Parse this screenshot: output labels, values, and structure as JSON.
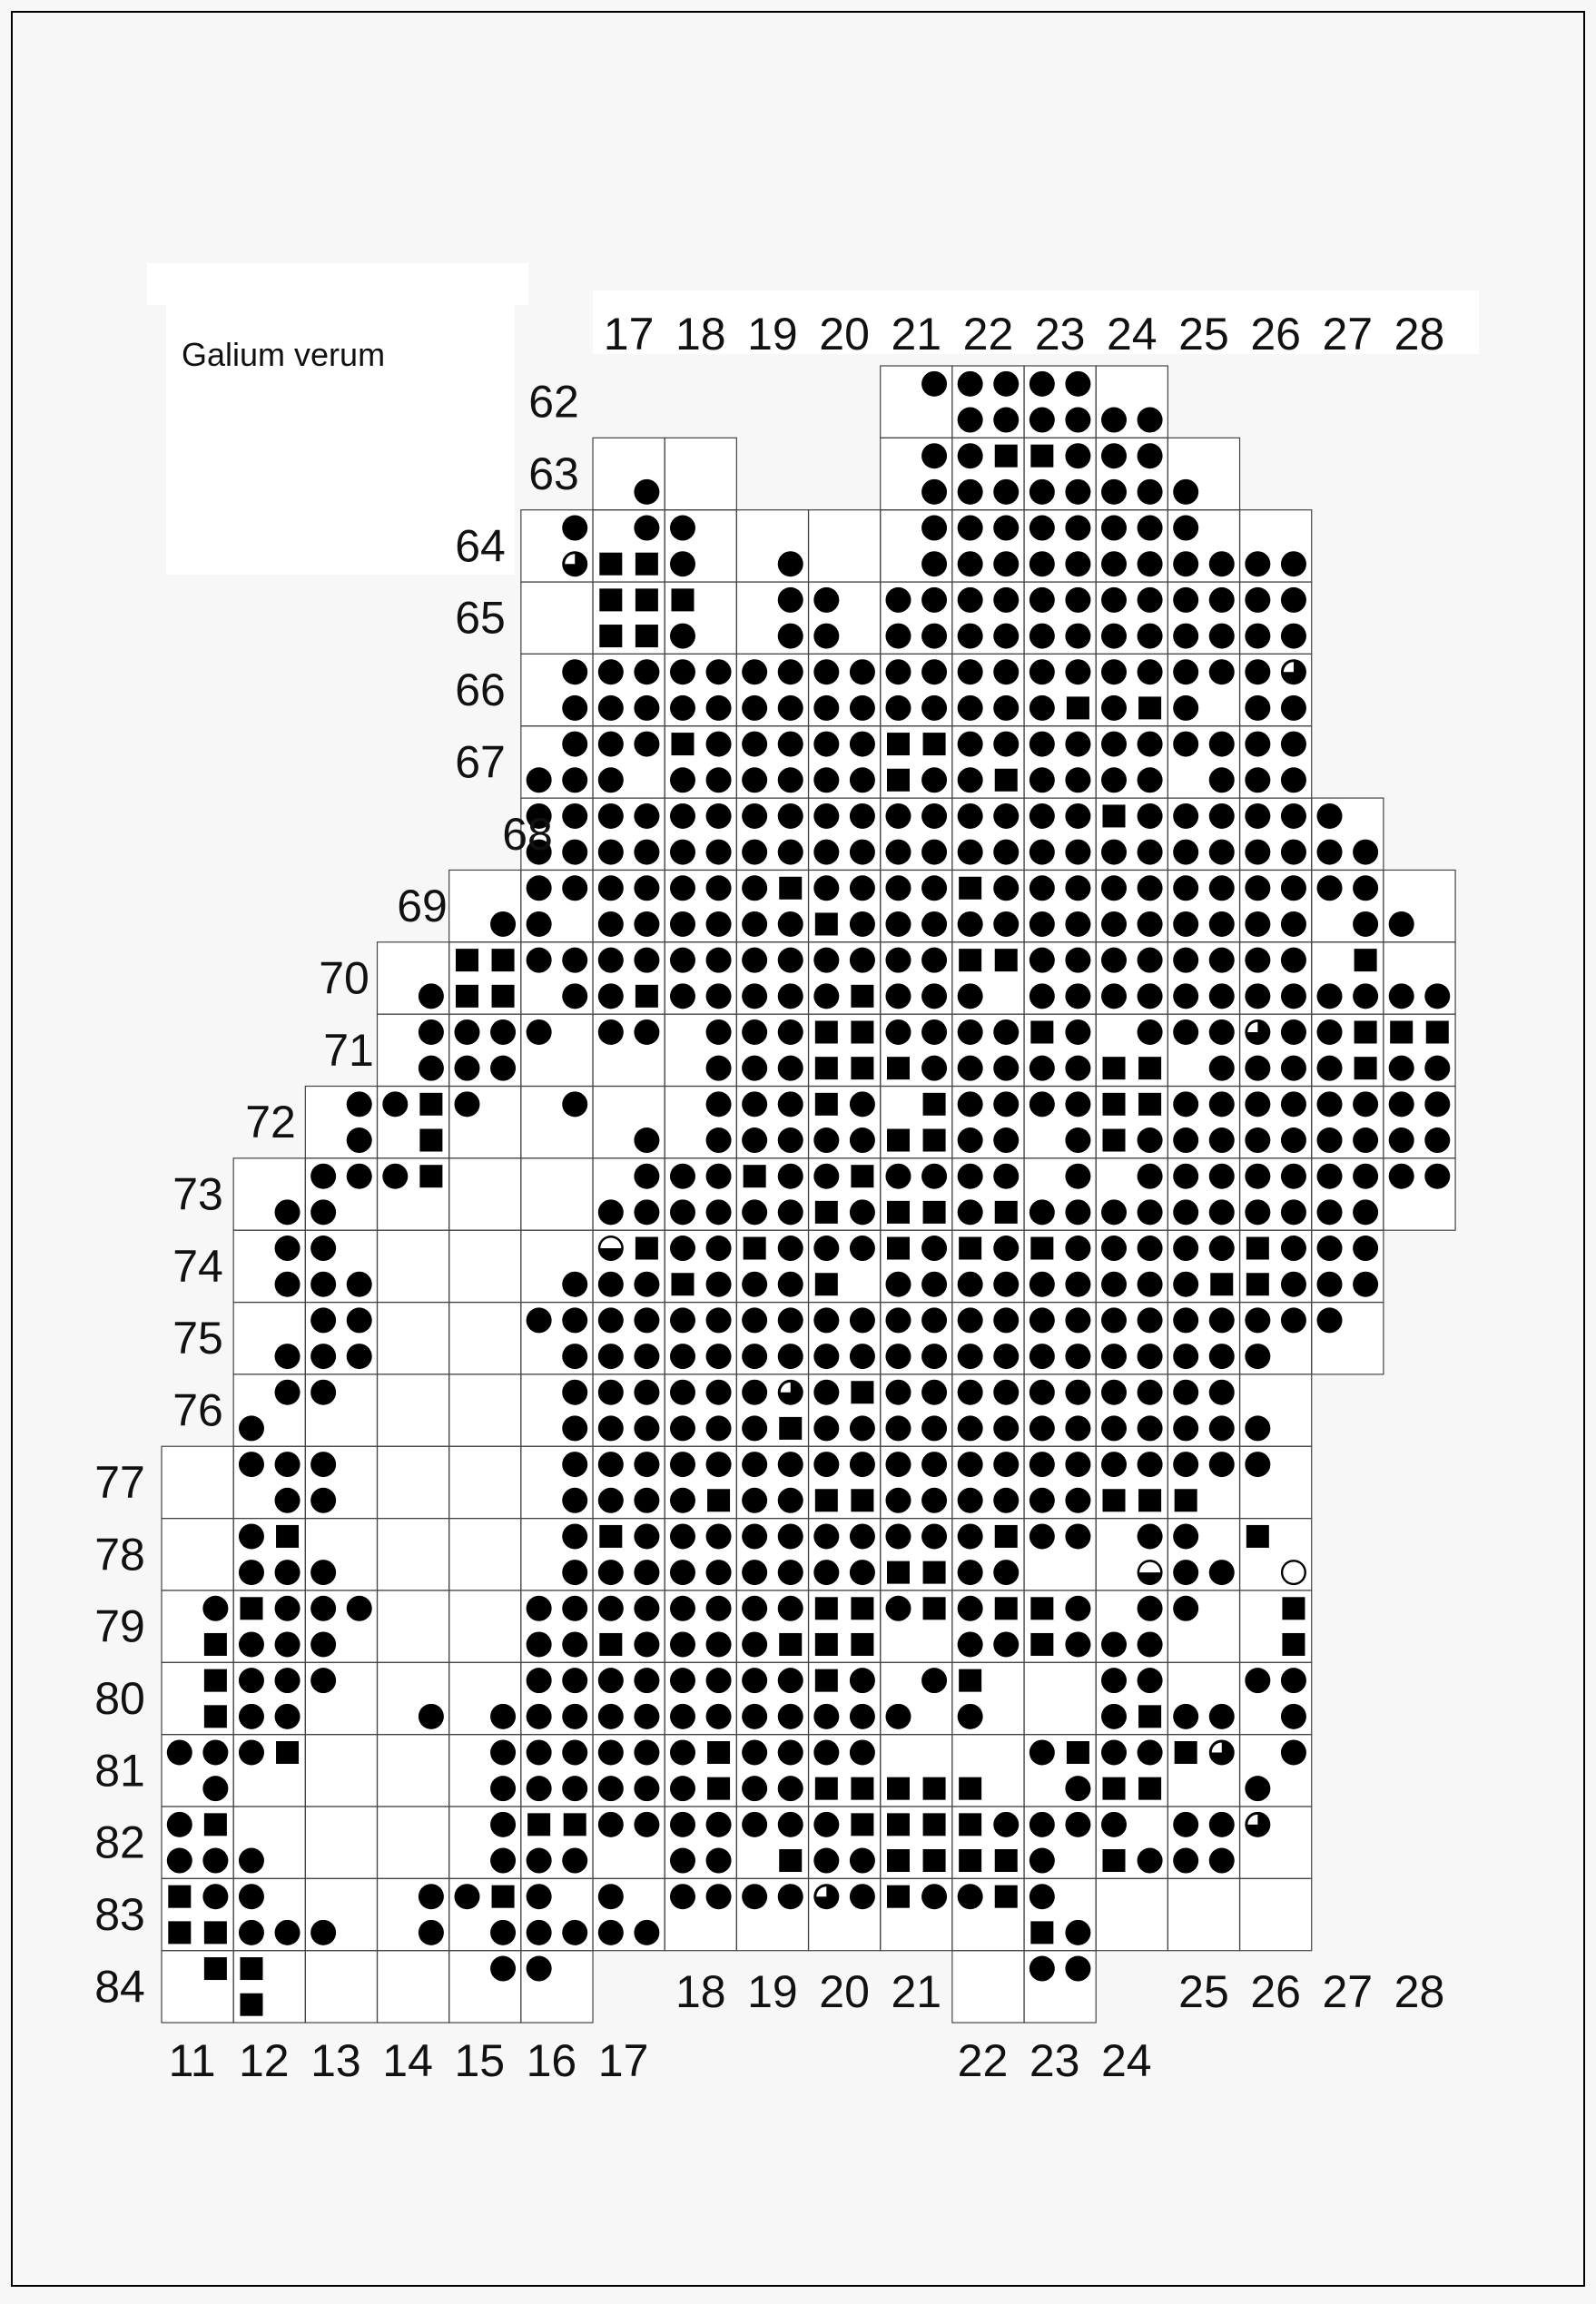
{
  "legend": {
    "title": "Galium verum"
  },
  "axes": {
    "top_column_labels": [
      "17",
      "18",
      "19",
      "20",
      "21",
      "22",
      "23",
      "24",
      "25",
      "26",
      "27",
      "28"
    ],
    "row_labels": [
      "62",
      "63",
      "64",
      "65",
      "66",
      "67",
      "68",
      "69",
      "70",
      "71",
      "72",
      "73",
      "74",
      "75",
      "76",
      "77",
      "78",
      "79",
      "80",
      "81",
      "82",
      "83",
      "84"
    ],
    "bottom_column_labels_low": [
      "11",
      "12",
      "13",
      "14",
      "15",
      "16",
      "17",
      "22",
      "23",
      "24"
    ],
    "bottom_column_labels_high": [
      "18",
      "19",
      "20",
      "21",
      "25",
      "26",
      "27",
      "28"
    ]
  },
  "grid": {
    "first_column": 11,
    "last_column": 28,
    "first_row": 62,
    "symbol_codes": {
      ".": "none",
      "o": "filled-circle",
      "s": "filled-square",
      "q": "circle-quarter-open",
      "h": "circle-half-open",
      "e": "open-circle"
    },
    "records": [
      {
        "row": 62,
        "upper": ".. .. .. .. .. .. .. .. .. .. .o oo oo .. .. .. .. ..",
        "lower": ".. .. .. .. .. .. .. .. .. .. .. oo oo oo .. .. .. .."
      },
      {
        "row": 63,
        "upper": ".. .. .. .. .. .. .. .. .. .. .o os so oo .. .. .. ..",
        "lower": ".. .. .. .. .. .. .o .. .. .. .o oo oo oo o. .. .. .."
      },
      {
        "row": 64,
        "upper": ".. .. .. .. .. .o .o o. .. .. .o oo oo oo o. .. .. ..",
        "lower": ".. .. .. .. .. .q ss o. .o .. .o oo oo oo oo oo .. .."
      },
      {
        "row": 65,
        "upper": ".. .. .. .. .. .. ss s. .o o. oo oo oo oo oo oo .. ..",
        "lower": ".. .. .. .. .. .. ss o. .o o. oo oo oo oo oo oo .. .."
      },
      {
        "row": 66,
        "upper": ".. .. .. .. .. .o oo oo oo oo oo oo oo oo oo oq .. ..",
        "lower": ".. .. .. .. .. .o oo oo oo oo oo oo os os o. oo .. .."
      },
      {
        "row": 67,
        "upper": ".. .. .. .. .. .o oo so oo oo ss oo oo oo oo oo .. ..",
        "lower": ".. .. .. .. .. oo o. oo oo oo so os oo oo .o oo .. .."
      },
      {
        "row": 68,
        "upper": ".. .. .. .. .. oo oo oo oo oo oo oo oo so oo oo o. ..",
        "lower": ".. .. .. .. .. oo oo oo oo oo oo oo oo oo oo oo oo .."
      },
      {
        "row": 69,
        "upper": ".. .. .. .. .. oo oo oo os oo oo so oo oo oo oo oo ..",
        "lower": ".. .. .. .. .o o. oo oo oo so oo oo oo oo oo oo .o o."
      },
      {
        "row": 70,
        "upper": ".. .. .. .. ss oo oo oo oo oo oo ss oo oo oo oo .s ..",
        "lower": ".. .. .. .o ss .o os oo oo os oo o. oo oo oo oo oo oo"
      },
      {
        "row": 71,
        "upper": ".. .. .. .o oo o. oo .o oo ss oo oo so .o oo qo os ss",
        "lower": ".. .. .. .o oo .. .. .o oo ss so oo oo ss .o oo os oo"
      },
      {
        "row": 72,
        "upper": ".. .. .o os o. .o .. .o oo so .s oo oo ss oo oo oo oo",
        "lower": ".. .. .o .s .. .. .o .o oo oo ss oo .o so oo oo oo oo"
      },
      {
        "row": 73,
        "upper": ".. .. oo os .. .. .o oo so os oo oo .o .o oo oo oo oo",
        "lower": ".. .o o. .. .. .. oo oo oo so ss os oo oo oo oo oo .."
      },
      {
        "row": 74,
        "upper": ".. .o o. .. .. .. hs oo so oo so so so oo oo so oo ..",
        "lower": ".. .o oo .. .. .o oo so oo s. oo oo oo oo os so oo .."
      },
      {
        "row": 75,
        "upper": ".. .. oo .. .. oo oo oo oo oo oo oo oo oo oo oo o. ..",
        "lower": ".. .o oo .. .. .o oo oo oo oo oo oo oo oo oo o. .. .."
      },
      {
        "row": 76,
        "upper": ".. .o o. .. .. .o oo oo oq os oo oo oo oo oo .. .. ..",
        "lower": ".. o. .. .. .. .o oo oo os oo oo oo oo oo oo o. .. .."
      },
      {
        "row": 77,
        "upper": ".. oo o. .. .. .o oo oo oo oo oo oo oo oo oo o. .. ..",
        "lower": ".. .o o. .. .. .o oo os oo ss oo oo oo ss s. .. .. .."
      },
      {
        "row": 78,
        "upper": ".. os .. .. .. .o so oo oo oo oo os oo .o o. s. .. ..",
        "lower": ".. oo o. .. .. .o oo oo oo oo ss oo .. .h oo .e .. .."
      },
      {
        "row": 79,
        "upper": ".o so oo .. .. oo oo oo oo ss os os so .o o. .s .. ..",
        "lower": ".s oo o. .. .. oo so oo os ss .. oo so oo .. .s .. .."
      },
      {
        "row": 80,
        "upper": ".s oo o. .. .. oo oo oo oo so .o s. .. oo .. oo .. ..",
        "lower": ".s oo .. .o .o oo oo oo oo oo o. o. .. os oo .o .. .."
      },
      {
        "row": 81,
        "upper": "oo os .. .. .o oo oo os oo oo .. .. os oo sq .o .. ..",
        "lower": ".o .. .. .. .o oo oo os oo ss ss s. .o ss .. o. .. .."
      },
      {
        "row": 82,
        "upper": "os .. .. .. .o ss oo oo oo os ss so oo o. oo q. .. ..",
        "lower": "oo o. .. .. .o oo .. oo .s oo ss ss o. so oo .. .. .."
      },
      {
        "row": 83,
        "upper": "so o. .. .o os o. o. oo oo qo so os o. .. .. .. .. ..",
        "lower": "ss oo o. .o .o oo oo .. .. .. .. .. so .. .. .. .. .."
      },
      {
        "row": 84,
        "upper": ".s s. .. .. .o o. .. .. .. .. .. .. oo .. .. .. .. ..",
        "lower": ".. s. .. .. .. .. .. .. .. .. .. .. .. .. .. .. .. .."
      }
    ]
  },
  "colors": {
    "page_background": "#f7f7f7",
    "cell_background": "#ffffff",
    "grid_line": "#444444",
    "symbol": "#000000",
    "lowland": "#cfdcae",
    "upland": "#e8ddb2",
    "water": "#8ecbef"
  }
}
